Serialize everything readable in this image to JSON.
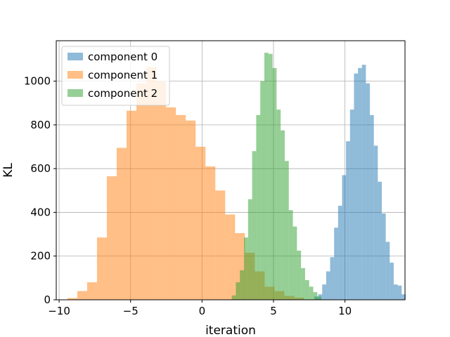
{
  "chart_data": {
    "type": "histogram",
    "xlabel": "iteration",
    "ylabel": "KL",
    "xlim": [
      -10.2,
      14.2
    ],
    "ylim": [
      0,
      1185
    ],
    "xticks": [
      -10,
      -5,
      0,
      5,
      10
    ],
    "xtick_labels": [
      "−10",
      "−5",
      "0",
      "5",
      "10"
    ],
    "yticks": [
      0,
      200,
      400,
      600,
      800,
      1000
    ],
    "ytick_labels": [
      "0",
      "200",
      "400",
      "600",
      "800",
      "1000"
    ],
    "grid": true,
    "legend_position": "top-left",
    "series": [
      {
        "name": "component 0",
        "color": "#1f77b4",
        "alpha": 0.5,
        "bin_start": 7.85,
        "bin_width": 0.278,
        "counts": [
          15,
          25,
          70,
          130,
          195,
          330,
          430,
          570,
          725,
          870,
          1035,
          1060,
          1075,
          990,
          845,
          705,
          540,
          395,
          265,
          170,
          70,
          65,
          25
        ]
      },
      {
        "name": "component 1",
        "color": "#ff7f0e",
        "alpha": 0.5,
        "bin_start": -9.42,
        "bin_width": 0.69,
        "counts": [
          8,
          40,
          80,
          285,
          565,
          695,
          865,
          990,
          1065,
          1000,
          880,
          845,
          820,
          700,
          610,
          500,
          390,
          305,
          215,
          130,
          60,
          40,
          18,
          10
        ]
      },
      {
        "name": "component 2",
        "color": "#2ca02c",
        "alpha": 0.5,
        "bin_start": 2.08,
        "bin_width": 0.285,
        "counts": [
          20,
          80,
          135,
          285,
          460,
          680,
          845,
          1000,
          1130,
          1125,
          1060,
          870,
          775,
          635,
          410,
          335,
          225,
          145,
          90,
          60,
          35,
          15
        ]
      }
    ]
  }
}
